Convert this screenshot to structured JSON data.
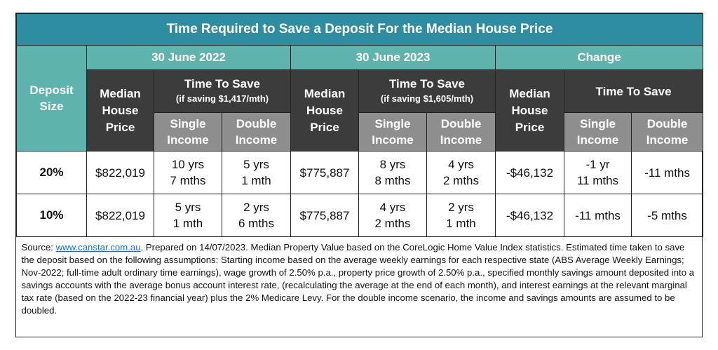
{
  "title": "Time Required to Save a Deposit For the Median House Price",
  "header": {
    "deposit_size": "Deposit Size",
    "period_2022": "30 June 2022",
    "period_2023": "30 June 2023",
    "change": "Change",
    "median_house_price": "Median House Price",
    "time_to_save": "Time To Save",
    "saving_2022": "(if saving $1,417/mth)",
    "saving_2023": "(if saving $1,605/mth)",
    "single_income": "Single Income",
    "double_income": "Double Income"
  },
  "rows": [
    {
      "deposit": "20%",
      "price_2022": "$822,019",
      "single_2022": [
        "10 yrs",
        "7 mths"
      ],
      "double_2022": [
        "5 yrs",
        "1 mth"
      ],
      "price_2023": "$775,887",
      "single_2023": [
        "8 yrs",
        "8 mths"
      ],
      "double_2023": [
        "4 yrs",
        "2 mths"
      ],
      "price_change": "-$46,132",
      "single_change": [
        "-1 yr",
        "11 mths"
      ],
      "double_change": [
        "-11 mths",
        ""
      ]
    },
    {
      "deposit": "10%",
      "price_2022": "$822,019",
      "single_2022": [
        "5 yrs",
        "1 mth"
      ],
      "double_2022": [
        "2 yrs",
        "6 mths"
      ],
      "price_2023": "$775,887",
      "single_2023": [
        "4 yrs",
        "2 mths"
      ],
      "double_2023": [
        "2 yrs",
        "1 mth"
      ],
      "price_change": "-$46,132",
      "single_change": [
        "-11 mths",
        ""
      ],
      "double_change": [
        "-5 mths",
        ""
      ]
    }
  ],
  "source": {
    "prefix": "Source: ",
    "link": "www.canstar.com.au",
    "text": ". Prepared on 14/07/2023. Median Property Value based on the CoreLogic Home Value Index statistics. Estimated time taken to save the deposit based on the following assumptions: Starting income based on the average weekly earnings for each respective state (ABS Average Weekly Earnings; Nov-2022; full-time adult ordinary time earnings), wage growth of 2.50% p.a., property price growth of 2.50% p.a., specified monthly savings amount deposited into a savings accounts with the average bonus account interest rate, (recalculating the average at the end of each month), and interest earnings at the relevant marginal tax rate (based on the 2022-23 financial year) plus the 2% Medicare Levy. For the double income scenario, the income and savings amounts are assumed to be doubled."
  }
}
